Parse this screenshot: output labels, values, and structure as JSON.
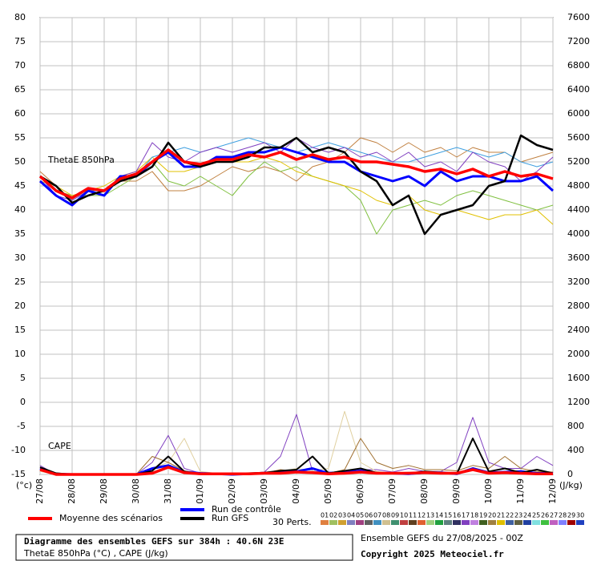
{
  "chart_data": {
    "type": "line",
    "y_series_label": "ThetaE 850hPa",
    "y2_series_label": "CAPE",
    "ylabel": "(°c)",
    "y2label": "(J/kg)",
    "footer_title": "Diagramme des ensembles GEFS sur 384h : 40.6N 23E",
    "footer_subtitle": "ThetaE 850hPa (°C) , CAPE (J/kg)",
    "run_info": "Ensemble GEFS du 27/08/2025 - 00Z",
    "copyright": "Copyright 2025 Meteociel.fr",
    "perturbations_label": "30 Perts.",
    "grid": true,
    "categories": [
      "27/08",
      null,
      "28/08",
      null,
      "29/08",
      null,
      "30/08",
      null,
      "31/08",
      null,
      "01/09",
      null,
      "02/09",
      null,
      "03/09",
      null,
      "04/09",
      null,
      "05/09",
      null,
      "06/09",
      null,
      "07/09",
      null,
      "08/09",
      null,
      "09/09",
      null,
      "10/09",
      null,
      "11/09",
      null,
      "12/09"
    ],
    "ylim": [
      -15,
      80
    ],
    "yticks": [
      80,
      75,
      70,
      65,
      60,
      55,
      50,
      45,
      40,
      35,
      30,
      25,
      20,
      15,
      10,
      5,
      0,
      -5,
      -10,
      -15
    ],
    "y2lim": [
      0,
      7600
    ],
    "y2ticks": [
      7600,
      7200,
      6800,
      6400,
      6000,
      5600,
      5200,
      4800,
      4400,
      4000,
      3600,
      3200,
      2800,
      2400,
      2000,
      1600,
      1200,
      800,
      400,
      0
    ],
    "series": [
      {
        "color": "#c08040",
        "values": [
          48,
          45,
          42,
          44,
          44,
          46,
          46,
          48,
          44,
          44,
          45,
          47,
          49,
          48,
          49,
          48,
          46,
          49,
          50,
          52,
          55,
          54,
          52,
          54,
          52,
          53,
          51,
          53,
          52,
          52,
          50,
          51,
          52
        ]
      },
      {
        "color": "#80c040",
        "values": [
          47,
          44,
          43,
          43,
          43,
          45,
          47,
          50,
          46,
          45,
          47,
          45,
          43,
          47,
          50,
          48,
          49,
          47,
          46,
          45,
          42,
          35,
          40,
          41,
          42,
          41,
          43,
          44,
          43,
          42,
          41,
          40,
          41
        ]
      },
      {
        "color": "#e0c000",
        "values": [
          46,
          45,
          43,
          44,
          45,
          47,
          48,
          51,
          48,
          48,
          49,
          50,
          50,
          50,
          51,
          50,
          48,
          47,
          46,
          45,
          44,
          42,
          41,
          43,
          40,
          39,
          40,
          39,
          38,
          39,
          39,
          40,
          37
        ]
      },
      {
        "color": "#40a0e0",
        "values": [
          47,
          44,
          42,
          44,
          44,
          46,
          47,
          51,
          52,
          53,
          52,
          53,
          54,
          55,
          54,
          53,
          52,
          53,
          54,
          53,
          52,
          51,
          50,
          50,
          51,
          52,
          53,
          52,
          51,
          52,
          50,
          49,
          50
        ]
      },
      {
        "color": "#8040c0",
        "values": [
          47,
          43,
          42,
          44,
          43,
          47,
          48,
          54,
          51,
          50,
          52,
          53,
          52,
          53,
          54,
          52,
          55,
          53,
          52,
          53,
          51,
          52,
          50,
          52,
          49,
          50,
          48,
          52,
          50,
          49,
          46,
          48,
          51
        ]
      },
      {
        "color": "#8040c0",
        "axis": "y2",
        "values": [
          150,
          0,
          0,
          0,
          0,
          0,
          0,
          200,
          650,
          100,
          20,
          10,
          10,
          20,
          40,
          300,
          1000,
          50,
          40,
          30,
          80,
          80,
          40,
          100,
          50,
          50,
          200,
          950,
          200,
          100,
          100,
          300,
          150
        ]
      },
      {
        "color": "#e0d0a0",
        "axis": "y2",
        "values": [
          50,
          0,
          0,
          0,
          0,
          0,
          0,
          100,
          200,
          600,
          50,
          20,
          10,
          30,
          10,
          50,
          100,
          60,
          100,
          1050,
          200,
          50,
          20,
          40,
          30,
          50,
          20,
          100,
          50,
          40,
          60,
          30,
          20
        ]
      },
      {
        "color": "#a07030",
        "axis": "y2",
        "values": [
          100,
          0,
          0,
          0,
          0,
          0,
          0,
          300,
          200,
          60,
          0,
          0,
          20,
          10,
          20,
          80,
          50,
          100,
          20,
          80,
          600,
          200,
          100,
          150,
          80,
          80,
          60,
          150,
          100,
          300,
          100,
          50,
          40
        ]
      },
      {
        "name": "Run de contrôle",
        "color": "#0000ff",
        "width": 3,
        "values": [
          46,
          43,
          41,
          44,
          43,
          47,
          47,
          50,
          52,
          49,
          49,
          51,
          51,
          52,
          52,
          53,
          52,
          51,
          50,
          50,
          48,
          47,
          46,
          47,
          45,
          48,
          46,
          47,
          47,
          46,
          46,
          47,
          44
        ]
      },
      {
        "color": "#0000ff",
        "width": 3,
        "axis": "y2",
        "values": [
          100,
          10,
          0,
          0,
          0,
          0,
          0,
          100,
          150,
          40,
          20,
          10,
          0,
          10,
          20,
          30,
          50,
          100,
          20,
          40,
          60,
          20,
          20,
          10,
          30,
          30,
          10,
          100,
          30,
          40,
          50,
          20,
          20
        ]
      },
      {
        "name": "Run GFS",
        "color": "#000000",
        "width": 2.5,
        "values": [
          47,
          45,
          41.5,
          43,
          44,
          46,
          47,
          49,
          54,
          50,
          49,
          50,
          50,
          51,
          53,
          53,
          55,
          52,
          53,
          52,
          48,
          46,
          41,
          43,
          35,
          39,
          40,
          41,
          45,
          46,
          55.5,
          53.5,
          52.5
        ]
      },
      {
        "color": "#000000",
        "width": 2,
        "axis": "y2",
        "values": [
          120,
          20,
          0,
          0,
          0,
          0,
          0,
          60,
          300,
          50,
          10,
          20,
          10,
          20,
          30,
          60,
          80,
          300,
          20,
          60,
          100,
          30,
          20,
          20,
          50,
          30,
          10,
          600,
          50,
          100,
          30,
          80,
          20
        ]
      },
      {
        "name": "Moyenne des scénarios",
        "color": "#ff0000",
        "width": 3.5,
        "values": [
          47,
          44,
          42.5,
          44.5,
          44,
          46.5,
          47.5,
          50,
          52.5,
          50,
          49.5,
          50.5,
          50.5,
          51.5,
          51,
          52,
          50.5,
          51.5,
          50.5,
          51,
          50,
          50,
          49.5,
          49,
          48,
          48.5,
          47.5,
          48.5,
          47,
          48,
          47,
          47.5,
          46.5
        ]
      },
      {
        "color": "#ff0000",
        "width": 3.5,
        "axis": "y2",
        "values": [
          80,
          0,
          0,
          0,
          0,
          0,
          0,
          20,
          120,
          30,
          10,
          10,
          10,
          10,
          20,
          20,
          40,
          30,
          10,
          20,
          40,
          20,
          20,
          20,
          30,
          20,
          20,
          80,
          20,
          30,
          20,
          10,
          10
        ]
      }
    ],
    "perturbations": [
      {
        "label": "01",
        "color": "#e08040"
      },
      {
        "label": "02",
        "color": "#a0c060"
      },
      {
        "label": "03",
        "color": "#d0a030"
      },
      {
        "label": "04",
        "color": "#8080c0"
      },
      {
        "label": "05",
        "color": "#a04080"
      },
      {
        "label": "06",
        "color": "#606060"
      },
      {
        "label": "07",
        "color": "#4090c0"
      },
      {
        "label": "08",
        "color": "#d0c090"
      },
      {
        "label": "09",
        "color": "#409070"
      },
      {
        "label": "10",
        "color": "#c04040"
      },
      {
        "label": "11",
        "color": "#604020"
      },
      {
        "label": "12",
        "color": "#e06030"
      },
      {
        "label": "13",
        "color": "#a0d080"
      },
      {
        "label": "14",
        "color": "#20a040"
      },
      {
        "label": "15",
        "color": "#608080"
      },
      {
        "label": "16",
        "color": "#303060"
      },
      {
        "label": "17",
        "color": "#8040c0"
      },
      {
        "label": "18",
        "color": "#c080e0"
      },
      {
        "label": "19",
        "color": "#406020"
      },
      {
        "label": "20",
        "color": "#a08040"
      },
      {
        "label": "21",
        "color": "#e0c000"
      },
      {
        "label": "22",
        "color": "#4060a0"
      },
      {
        "label": "23",
        "color": "#606040"
      },
      {
        "label": "24",
        "color": "#2040a0"
      },
      {
        "label": "25",
        "color": "#80e0e0"
      },
      {
        "label": "26",
        "color": "#40c040"
      },
      {
        "label": "27",
        "color": "#c060c0"
      },
      {
        "label": "28",
        "color": "#8080ff"
      },
      {
        "label": "29",
        "color": "#a00000"
      },
      {
        "label": "30",
        "color": "#2040c0"
      }
    ]
  }
}
